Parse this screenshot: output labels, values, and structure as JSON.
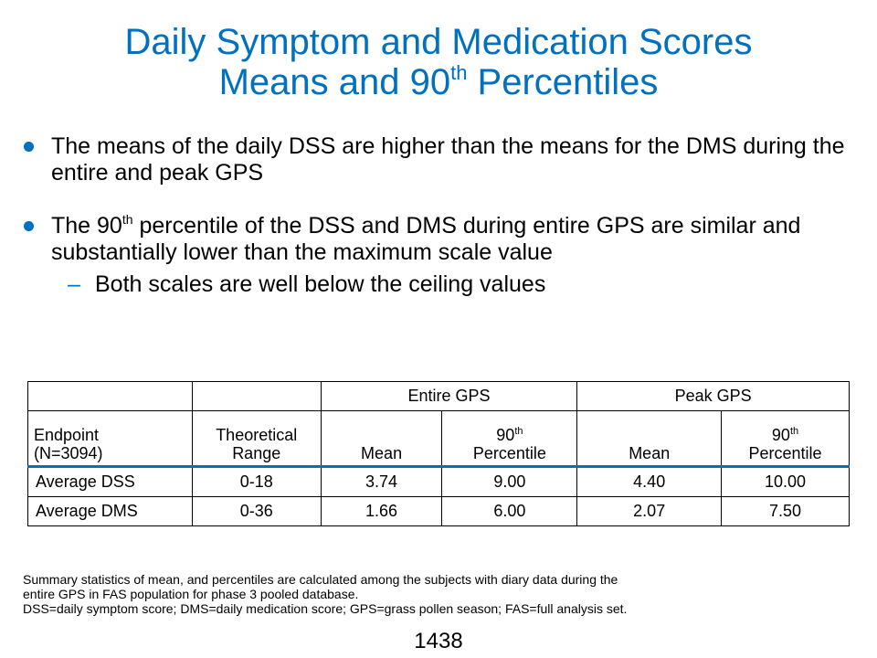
{
  "title": {
    "line1": "Daily Symptom and Medication Scores",
    "line2_pre": "Means and 90",
    "line2_sup": "th",
    "line2_post": " Percentiles"
  },
  "bullets": {
    "b1": "The means of the daily DSS are higher than the means for the DMS during the entire and peak GPS",
    "b2_pre": "The 90",
    "b2_sup": "th",
    "b2_post": " percentile of the DSS and DMS during entire GPS are similar and substantially lower than the maximum scale value",
    "sub_dash": "–",
    "sub1": "Both scales are well below the ceiling values"
  },
  "table": {
    "group_entire": "Entire GPS",
    "group_peak": "Peak GPS",
    "endpoint_label": "Endpoint",
    "endpoint_n": "(N=3094)",
    "range_line1": "Theoretical",
    "range_line2": "Range",
    "mean_label": "Mean",
    "p90_pre": "90",
    "p90_sup": "th",
    "p90_label": "Percentile",
    "rows": [
      {
        "endpoint": "Average DSS",
        "range": "0-18",
        "entire_mean": "3.74",
        "entire_p90": "9.00",
        "peak_mean": "4.40",
        "peak_p90": "10.00"
      },
      {
        "endpoint": "Average DMS",
        "range": "0-36",
        "entire_mean": "1.66",
        "entire_p90": "6.00",
        "peak_mean": "2.07",
        "peak_p90": "7.50"
      }
    ]
  },
  "footnote": {
    "line1": "Summary statistics of mean, and percentiles are calculated among the subjects with diary data during the",
    "line2": "entire GPS in FAS population for phase 3 pooled database.",
    "line3": "DSS=daily symptom score; DMS=daily medication score; GPS=grass pollen season; FAS=full analysis set."
  },
  "page_number": "1438",
  "colors": {
    "accent": "#0070C0"
  }
}
